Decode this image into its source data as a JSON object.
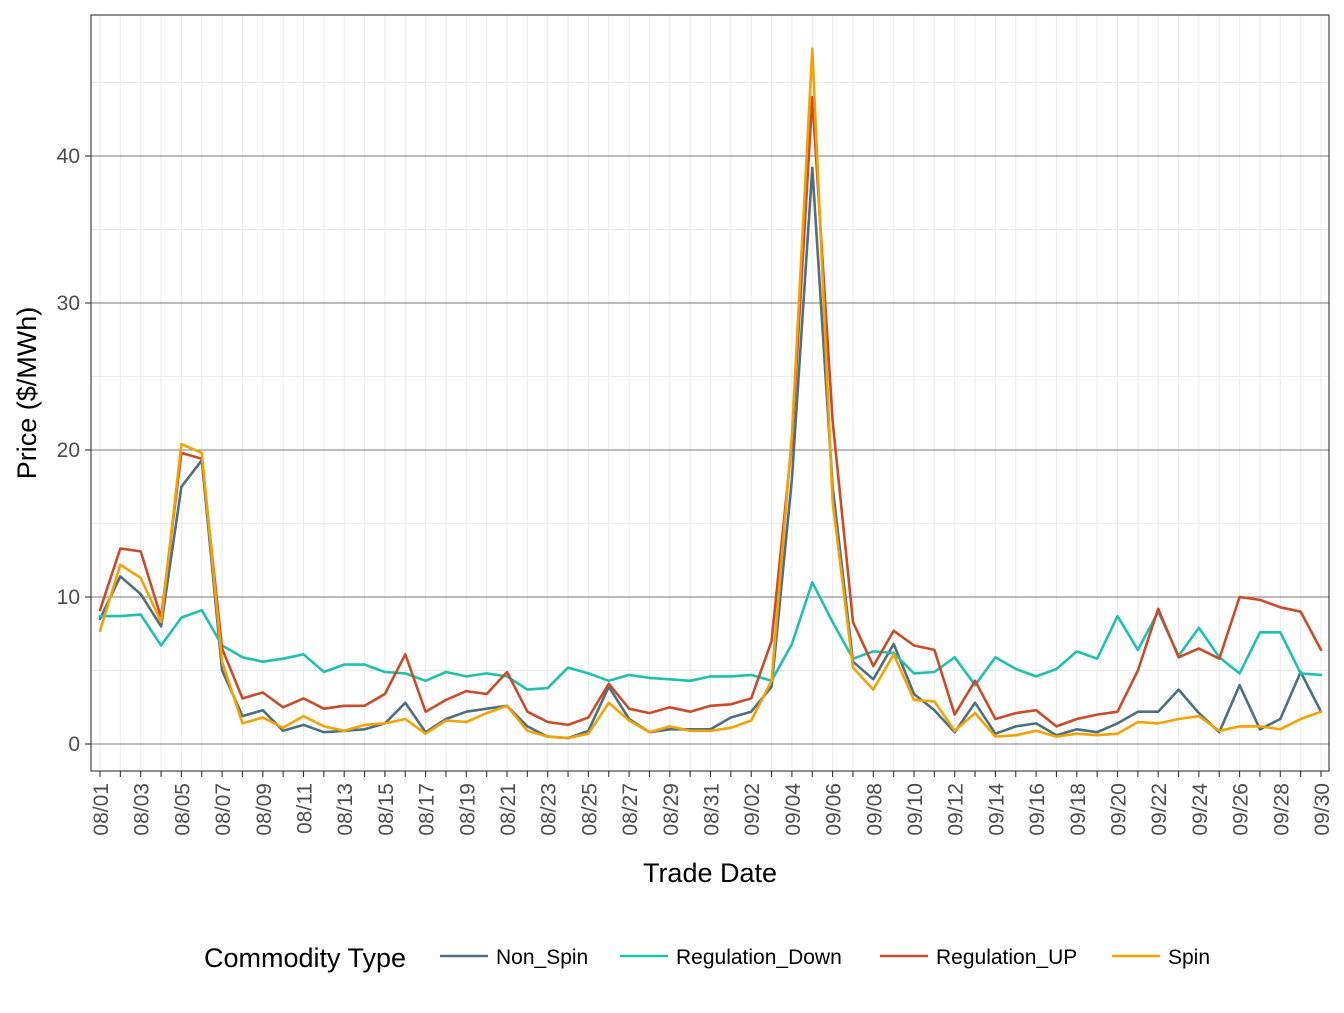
{
  "chart_data": {
    "type": "line",
    "xlabel": "Trade Date",
    "ylabel": "Price ($/MWh)",
    "ylim": [
      -1.5,
      49
    ],
    "yticks": [
      0,
      10,
      20,
      30,
      40
    ],
    "grid": true,
    "legend_position": "bottom",
    "legend_title": "Commodity Type",
    "x": [
      "08/01",
      "08/02",
      "08/03",
      "08/04",
      "08/05",
      "08/06",
      "08/07",
      "08/08",
      "08/09",
      "08/10",
      "08/11",
      "08/12",
      "08/13",
      "08/14",
      "08/15",
      "08/16",
      "08/17",
      "08/18",
      "08/19",
      "08/20",
      "08/21",
      "08/22",
      "08/23",
      "08/24",
      "08/25",
      "08/26",
      "08/27",
      "08/28",
      "08/29",
      "08/30",
      "08/31",
      "09/01",
      "09/02",
      "09/03",
      "09/04",
      "09/05",
      "09/06",
      "09/07",
      "09/08",
      "09/09",
      "09/10",
      "09/11",
      "09/12",
      "09/13",
      "09/14",
      "09/15",
      "09/16",
      "09/17",
      "09/18",
      "09/19",
      "09/20",
      "09/21",
      "09/22",
      "09/23",
      "09/24",
      "09/25",
      "09/26",
      "09/27",
      "09/28",
      "09/29",
      "09/30"
    ],
    "xtick_labels": [
      "08/01",
      "08/03",
      "08/05",
      "08/07",
      "08/09",
      "08/11",
      "08/13",
      "08/15",
      "08/17",
      "08/19",
      "08/21",
      "08/23",
      "08/25",
      "08/27",
      "08/29",
      "08/31",
      "09/02",
      "09/04",
      "09/06",
      "09/08",
      "09/10",
      "09/12",
      "09/14",
      "09/16",
      "09/18",
      "09/20",
      "09/22",
      "09/24",
      "09/26",
      "09/28",
      "09/30"
    ],
    "series": [
      {
        "name": "Non_Spin",
        "color": "#4D6F82",
        "values": [
          8.5,
          11.4,
          10.2,
          8.0,
          17.5,
          19.3,
          5.0,
          1.9,
          2.3,
          0.9,
          1.3,
          0.8,
          0.9,
          1.0,
          1.4,
          2.8,
          0.8,
          1.7,
          2.2,
          2.4,
          2.6,
          1.2,
          0.5,
          0.4,
          0.9,
          3.9,
          1.7,
          0.8,
          1.0,
          1.0,
          1.0,
          1.8,
          2.2,
          3.9,
          18.0,
          39.2,
          17.5,
          5.6,
          4.4,
          6.8,
          3.4,
          2.3,
          0.8,
          2.8,
          0.7,
          1.2,
          1.4,
          0.6,
          1.0,
          0.8,
          1.4,
          2.2,
          2.2,
          3.7,
          2.1,
          0.8,
          4.0,
          1.0,
          1.7,
          4.9,
          2.2
        ]
      },
      {
        "name": "Regulation_Down",
        "color": "#1EC1B0",
        "values": [
          8.7,
          8.7,
          8.8,
          6.7,
          8.6,
          9.1,
          6.7,
          5.9,
          5.6,
          5.8,
          6.1,
          4.9,
          5.4,
          5.4,
          4.9,
          4.8,
          4.3,
          4.9,
          4.6,
          4.8,
          4.6,
          3.7,
          3.8,
          5.2,
          4.8,
          4.3,
          4.7,
          4.5,
          4.4,
          4.3,
          4.6,
          4.6,
          4.7,
          4.3,
          6.8,
          11.0,
          8.3,
          5.8,
          6.3,
          6.2,
          4.8,
          4.9,
          5.9,
          4.0,
          5.9,
          5.1,
          4.6,
          5.1,
          6.3,
          5.8,
          8.7,
          6.4,
          9.0,
          6.0,
          7.9,
          5.9,
          4.8,
          7.6,
          7.6,
          4.8,
          4.7
        ]
      },
      {
        "name": "Regulation_UP",
        "color": "#CC4A28",
        "values": [
          9.1,
          13.3,
          13.1,
          8.6,
          19.8,
          19.4,
          6.5,
          3.1,
          3.5,
          2.5,
          3.1,
          2.4,
          2.6,
          2.6,
          3.4,
          6.1,
          2.2,
          3.0,
          3.6,
          3.4,
          4.9,
          2.2,
          1.5,
          1.3,
          1.8,
          4.1,
          2.4,
          2.1,
          2.5,
          2.2,
          2.6,
          2.7,
          3.1,
          7.0,
          20.5,
          44.0,
          22.0,
          8.3,
          5.3,
          7.7,
          6.7,
          6.4,
          2.0,
          4.3,
          1.7,
          2.1,
          2.3,
          1.2,
          1.7,
          2.0,
          2.2,
          5.0,
          9.2,
          5.9,
          6.5,
          5.8,
          10.0,
          9.8,
          9.3,
          9.0,
          6.4
        ]
      },
      {
        "name": "Spin",
        "color": "#F5A200",
        "values": [
          7.7,
          12.2,
          11.3,
          8.3,
          20.4,
          19.8,
          5.6,
          1.4,
          1.8,
          1.1,
          1.9,
          1.2,
          0.9,
          1.3,
          1.4,
          1.7,
          0.7,
          1.6,
          1.5,
          2.1,
          2.6,
          0.9,
          0.5,
          0.4,
          0.7,
          2.8,
          1.6,
          0.8,
          1.2,
          0.9,
          0.9,
          1.1,
          1.6,
          4.3,
          21.0,
          47.3,
          16.5,
          5.2,
          3.7,
          6.1,
          3.0,
          2.9,
          0.9,
          2.1,
          0.5,
          0.6,
          0.9,
          0.5,
          0.7,
          0.6,
          0.7,
          1.5,
          1.4,
          1.7,
          1.9,
          0.9,
          1.2,
          1.2,
          1.0,
          1.7,
          2.2
        ]
      }
    ]
  }
}
